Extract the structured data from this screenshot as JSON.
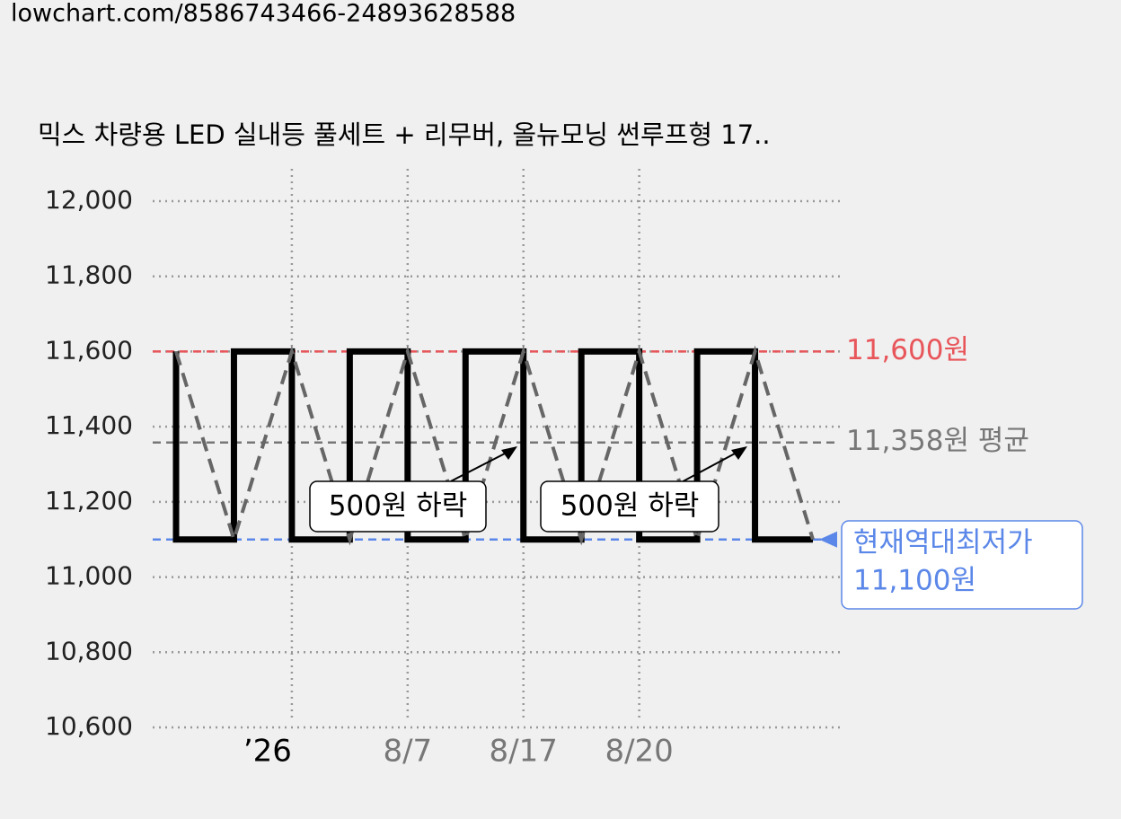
{
  "url": "lowchart.com/8586743466-24893628588",
  "chart_data": {
    "type": "line",
    "title": "믹스 차량용 LED 실내등 풀세트 + 리무버, 올뉴모닝 썬루프형 17..",
    "categories": [
      null,
      null,
      "’26",
      null,
      "8/7",
      null,
      "8/17",
      null,
      "8/20",
      null,
      null,
      null
    ],
    "series": [
      {
        "color": "#000000",
        "values": [
          11600,
          11100,
          11600,
          11100,
          11600,
          11100,
          11600,
          11100,
          11600,
          11100,
          11600,
          11100
        ]
      }
    ],
    "ylim": [
      10600,
      12000
    ],
    "yticks": [
      {
        "value": 10600,
        "label": "10,600"
      },
      {
        "value": 10800,
        "label": "10,800"
      },
      {
        "value": 11000,
        "label": "11,000"
      },
      {
        "value": 11200,
        "label": "11,200"
      },
      {
        "value": 11400,
        "label": "11,400"
      },
      {
        "value": 11600,
        "label": "11,600"
      },
      {
        "value": 11800,
        "label": "11,800"
      },
      {
        "value": 12000,
        "label": "12,000"
      }
    ],
    "grid": true,
    "reference_lines": [
      {
        "value": 11600,
        "label": "11,600원",
        "color": "#e8555a"
      },
      {
        "value": 11358,
        "label": "11,358원 평균",
        "color": "#777777"
      },
      {
        "value": 11100,
        "label": [
          "현재역대최저가",
          "11,100원"
        ],
        "color": "#5b87e8"
      }
    ],
    "annotations": [
      "500원 하락",
      "500원 하락"
    ]
  }
}
